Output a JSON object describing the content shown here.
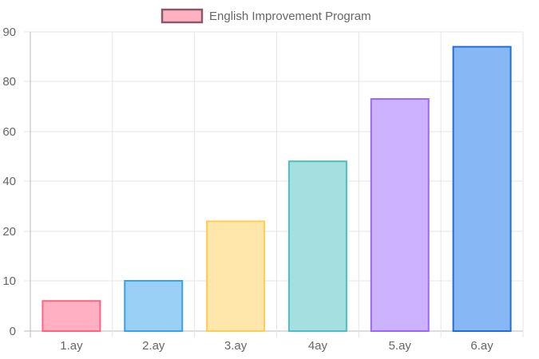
{
  "chart_data": {
    "type": "bar",
    "categories": [
      "1.ay",
      "2.ay",
      "3.ay",
      "4ay",
      "5.ay",
      "6.ay"
    ],
    "series": [
      {
        "name": "English Improvement Program",
        "values": [
          6,
          10,
          24,
          48,
          73,
          87
        ]
      }
    ],
    "y_ticks": [
      "0",
      "10",
      "20",
      "40",
      "60",
      "80",
      "90"
    ],
    "ylim": [
      0,
      90
    ],
    "grid": true,
    "legend": "top-center",
    "bar_fill_colors": [
      "#ffb1c1",
      "#9ad0f5",
      "#ffe6aa",
      "#a5dfdf",
      "#ccb2ff",
      "#87b8f5"
    ],
    "bar_border_colors": [
      "#ff6384",
      "#36a2eb",
      "#ffcd56",
      "#4bc0c0",
      "#9966ff",
      "#1e6fd9"
    ],
    "legend_fill": "#ffb1c1",
    "legend_border": "#8c5a66"
  }
}
